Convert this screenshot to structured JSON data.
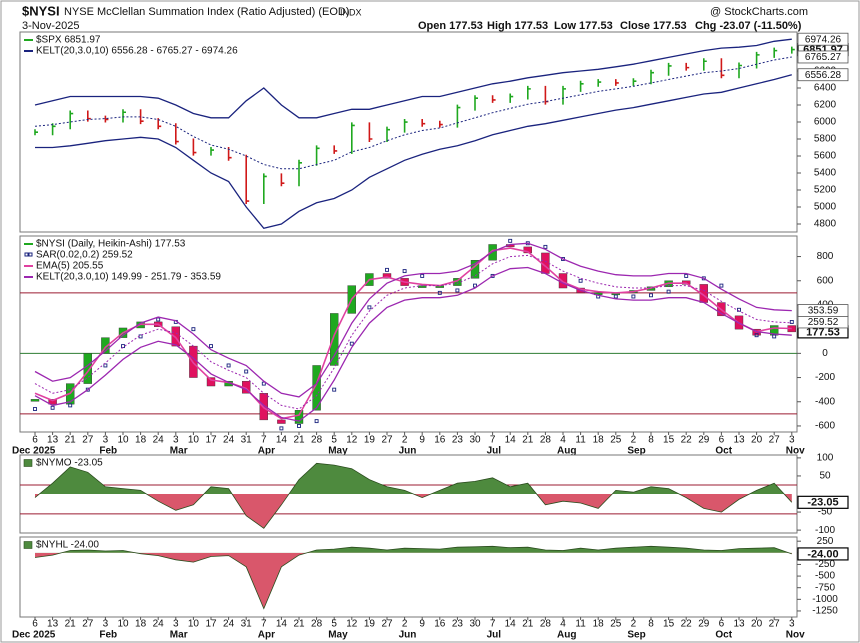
{
  "header": {
    "symbol": "$NYSI",
    "description": "NYSE McClellan Summation Index (Ratio Adjusted) (EOD)",
    "exchange": "INDX",
    "brand": "@ StockCharts.com",
    "date": "3-Nov-2025",
    "open": "Open 177.53",
    "high": "High 177.53",
    "low": "Low 177.53",
    "close": "Close 177.53",
    "change": "Chg -23.07 (-11.50%)"
  },
  "x_axis": {
    "categories": [
      "6",
      "13",
      "21",
      "27",
      "3",
      "10",
      "18",
      "24",
      "3",
      "10",
      "17",
      "24",
      "31",
      "7",
      "14",
      "21",
      "28",
      "5",
      "12",
      "19",
      "27",
      "2",
      "9",
      "16",
      "23",
      "30",
      "7",
      "14",
      "21",
      "28",
      "4",
      "11",
      "18",
      "25",
      "2",
      "8",
      "15",
      "22",
      "29",
      "6",
      "13",
      "20",
      "27",
      "3"
    ],
    "month_labels": [
      "Dec 2025",
      null,
      null,
      null,
      "Feb",
      null,
      null,
      null,
      "Mar",
      null,
      null,
      null,
      null,
      "Apr",
      null,
      null,
      null,
      "May",
      null,
      null,
      null,
      "Jun",
      null,
      null,
      null,
      null,
      "Jul",
      null,
      null,
      null,
      "Aug",
      null,
      null,
      null,
      "Sep",
      null,
      null,
      null,
      null,
      "Oct",
      null,
      null,
      null,
      "Nov"
    ]
  },
  "chart_data": [
    {
      "type": "bar",
      "ylim": [
        4706,
        7059
      ],
      "yticks": [
        4800,
        5000,
        5200,
        5400,
        5600,
        5800,
        6000,
        6200,
        6400,
        6600
      ],
      "series": [
        {
          "name": "$SPX 6851.97",
          "style": "main",
          "color": "#000000",
          "up_color": "#1fa81f",
          "down_color": "#d01818",
          "box": true,
          "values": [
            5880,
            5950,
            6100,
            6040,
            6030,
            6115,
            6010,
            5950,
            5770,
            5640,
            5670,
            5580,
            5070,
            5360,
            5280,
            5520,
            5690,
            5660,
            5960,
            5800,
            5910,
            6000,
            5980,
            5970,
            6170,
            6280,
            6260,
            6300,
            6390,
            6240,
            6390,
            6450,
            6470,
            6460,
            6480,
            6580,
            6660,
            6640,
            6715,
            6550,
            6665,
            6790,
            6840,
            6851.97
          ]
        },
        {
          "name": "KELT(20,3.0,10) 6556.28 - 6765.27 - 6974.26",
          "style": "band",
          "color": "#1a237e",
          "boxes": [
            "upper",
            "middle",
            "lower"
          ],
          "upper": [
            6200,
            6250,
            6300,
            6300,
            6300,
            6300,
            6300,
            6280,
            6200,
            6100,
            6050,
            6050,
            6250,
            6400,
            6200,
            6050,
            6050,
            6100,
            6150,
            6150,
            6200,
            6250,
            6300,
            6300,
            6350,
            6400,
            6450,
            6480,
            6520,
            6550,
            6580,
            6600,
            6620,
            6650,
            6680,
            6720,
            6760,
            6800,
            6840,
            6870,
            6880,
            6900,
            6950,
            6974.26
          ],
          "middle": [
            5950,
            5970,
            6000,
            6030,
            6040,
            6060,
            6060,
            6030,
            5950,
            5830,
            5730,
            5680,
            5600,
            5500,
            5450,
            5450,
            5500,
            5550,
            5650,
            5700,
            5780,
            5850,
            5900,
            5930,
            5990,
            6050,
            6110,
            6160,
            6210,
            6240,
            6280,
            6320,
            6360,
            6390,
            6420,
            6460,
            6500,
            6540,
            6580,
            6600,
            6630,
            6680,
            6730,
            6765.27
          ],
          "lower": [
            5700,
            5700,
            5720,
            5750,
            5780,
            5800,
            5820,
            5800,
            5700,
            5550,
            5400,
            5300,
            5000,
            4750,
            4800,
            4950,
            5050,
            5100,
            5200,
            5350,
            5450,
            5550,
            5620,
            5680,
            5720,
            5780,
            5850,
            5900,
            5950,
            5980,
            6020,
            6060,
            6100,
            6140,
            6170,
            6210,
            6250,
            6290,
            6330,
            6350,
            6400,
            6450,
            6500,
            6556.28
          ]
        }
      ]
    },
    {
      "type": "candlestick",
      "ylim": [
        -650,
        970
      ],
      "yticks": [
        -600,
        -400,
        -200,
        0,
        200,
        400,
        600,
        800
      ],
      "hlines": [
        {
          "value": 500,
          "color": "#9b1b30"
        },
        {
          "value": -500,
          "color": "#9b1b30"
        },
        {
          "value": 0,
          "color": "#2e7d32"
        }
      ],
      "series": [
        {
          "name": "$NYSI (Daily, Heikin-Ashi) 177.53",
          "style": "main",
          "color": "#000000",
          "up_color": "#1fa81f",
          "down_color": "#e0115f",
          "box": true,
          "values": [
            -380,
            -420,
            -250,
            0,
            130,
            210,
            260,
            220,
            60,
            -200,
            -270,
            -230,
            -330,
            -550,
            -580,
            -470,
            -100,
            330,
            560,
            660,
            620,
            560,
            560,
            560,
            620,
            770,
            900,
            880,
            830,
            660,
            540,
            500,
            500,
            500,
            520,
            550,
            600,
            570,
            420,
            310,
            200,
            150,
            230,
            177.53
          ]
        },
        {
          "name": "SAR(0.02,0.2) 259.52",
          "style": "dots",
          "color": "#1a237e",
          "box": true,
          "values": [
            -460,
            -450,
            -430,
            -300,
            -100,
            60,
            140,
            280,
            260,
            200,
            60,
            -100,
            -150,
            -250,
            -620,
            -600,
            -560,
            -300,
            80,
            380,
            690,
            680,
            640,
            500,
            520,
            560,
            640,
            930,
            910,
            880,
            780,
            600,
            470,
            470,
            470,
            480,
            510,
            640,
            620,
            560,
            360,
            150,
            140,
            259.52
          ]
        },
        {
          "name": "EMA(5) 205.55",
          "style": "line",
          "color": "#e040a0",
          "values": [
            -330,
            -390,
            -330,
            -150,
            50,
            170,
            240,
            240,
            130,
            -80,
            -220,
            -240,
            -290,
            -450,
            -540,
            -510,
            -250,
            150,
            450,
            610,
            630,
            590,
            570,
            560,
            600,
            720,
            850,
            870,
            840,
            720,
            590,
            530,
            510,
            500,
            510,
            540,
            580,
            580,
            480,
            360,
            250,
            180,
            210,
            205.55
          ]
        },
        {
          "name": "KELT(20,3.0,10) 149.99 - 251.79 - 353.59",
          "style": "band",
          "color": "#9c27b0",
          "boxes": [
            "upper"
          ],
          "upper": [
            -150,
            -230,
            -200,
            -100,
            20,
            150,
            250,
            300,
            270,
            160,
            30,
            -40,
            -100,
            -230,
            -330,
            -360,
            -250,
            -20,
            250,
            450,
            580,
            640,
            660,
            660,
            680,
            740,
            840,
            900,
            910,
            860,
            780,
            720,
            680,
            650,
            640,
            640,
            660,
            660,
            620,
            530,
            450,
            380,
            360,
            353.59
          ],
          "middle": [
            -250,
            -330,
            -300,
            -200,
            -80,
            50,
            150,
            200,
            170,
            60,
            -70,
            -140,
            -200,
            -330,
            -430,
            -460,
            -350,
            -120,
            150,
            350,
            480,
            540,
            560,
            560,
            580,
            640,
            740,
            800,
            810,
            760,
            680,
            620,
            580,
            550,
            540,
            540,
            560,
            560,
            520,
            430,
            350,
            280,
            260,
            251.79
          ],
          "lower": [
            -350,
            -430,
            -400,
            -300,
            -180,
            -50,
            50,
            100,
            70,
            -40,
            -170,
            -240,
            -300,
            -430,
            -530,
            -560,
            -450,
            -220,
            50,
            250,
            380,
            440,
            460,
            460,
            480,
            540,
            640,
            700,
            710,
            660,
            580,
            520,
            480,
            450,
            440,
            440,
            460,
            460,
            420,
            330,
            250,
            180,
            160,
            149.99
          ]
        }
      ]
    },
    {
      "type": "area",
      "ylim": [
        -108,
        108
      ],
      "yticks": [
        -100,
        -50,
        50,
        100
      ],
      "hlines": [
        {
          "value": 25,
          "color": "#9b1b30"
        },
        {
          "value": -55,
          "color": "#9b1b30"
        }
      ],
      "series": [
        {
          "name": "$NYMO -23.05",
          "style": "main",
          "color": "#2b4d1e",
          "up_color": "#4e8a3e",
          "down_color": "#d9576b",
          "box": true,
          "values": [
            -10,
            30,
            75,
            60,
            20,
            15,
            10,
            -20,
            -45,
            -30,
            20,
            15,
            -60,
            -95,
            -30,
            40,
            85,
            80,
            70,
            40,
            20,
            10,
            -10,
            10,
            30,
            35,
            45,
            20,
            30,
            -30,
            -20,
            -25,
            -40,
            10,
            5,
            20,
            15,
            -10,
            -40,
            -50,
            -15,
            10,
            30,
            -23.05
          ]
        }
      ]
    },
    {
      "type": "area",
      "ylim": [
        -1380,
        340
      ],
      "yticks": [
        -1250,
        -1000,
        -750,
        -500,
        -250,
        0,
        250
      ],
      "series": [
        {
          "name": "$NYHL -24.00",
          "style": "main",
          "color": "#2b4d1e",
          "up_color": "#4e8a3e",
          "down_color": "#d9576b",
          "box": true,
          "last_label": "-24.00",
          "values": [
            -100,
            -50,
            50,
            60,
            40,
            50,
            -20,
            -60,
            -150,
            -200,
            -80,
            -60,
            -300,
            -1200,
            -300,
            -50,
            60,
            80,
            120,
            100,
            60,
            100,
            90,
            80,
            120,
            130,
            140,
            110,
            120,
            60,
            50,
            100,
            60,
            100,
            120,
            140,
            120,
            100,
            60,
            50,
            90,
            100,
            110,
            -24
          ]
        }
      ]
    }
  ]
}
